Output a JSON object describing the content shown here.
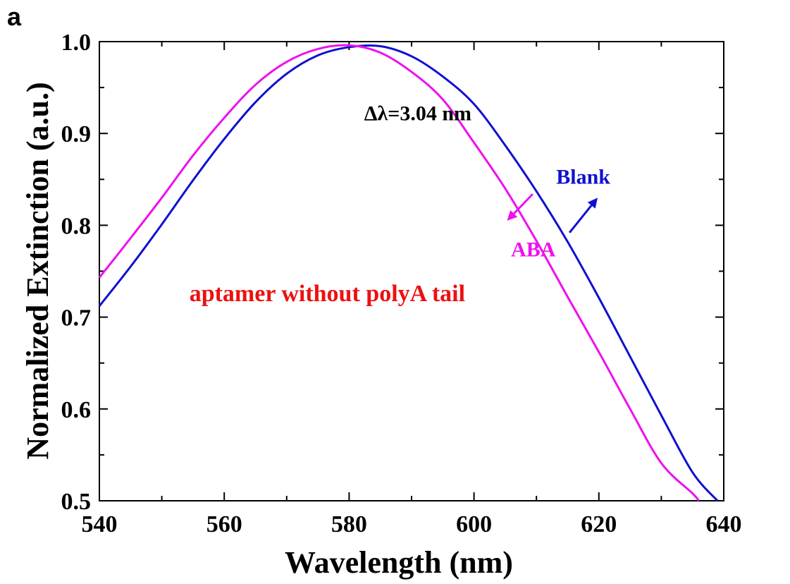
{
  "panel_label": "a",
  "chart_data": {
    "type": "line",
    "title": "",
    "xlabel": "Wavelength (nm)",
    "ylabel": "Normalized Extinction (a.u.)",
    "xlim": [
      540,
      640
    ],
    "ylim": [
      0.5,
      1.0
    ],
    "x_ticks": [
      540,
      560,
      580,
      600,
      620,
      640
    ],
    "y_ticks": [
      0.5,
      0.6,
      0.7,
      0.8,
      0.9,
      1.0
    ],
    "x_tick_labels": [
      "540",
      "560",
      "580",
      "600",
      "620",
      "640"
    ],
    "y_tick_labels": [
      "0.5",
      "0.6",
      "0.7",
      "0.8",
      "0.9",
      "1.0"
    ],
    "grid": false,
    "series": [
      {
        "name": "Blank",
        "color": "#1010d0",
        "x": [
          540,
          545,
          550,
          555,
          560,
          565,
          570,
          575,
          580,
          585,
          590,
          595,
          600,
          605,
          610,
          615,
          620,
          625,
          630,
          635,
          639
        ],
        "y": [
          0.712,
          0.755,
          0.801,
          0.849,
          0.894,
          0.934,
          0.965,
          0.985,
          0.994,
          0.995,
          0.984,
          0.962,
          0.932,
          0.887,
          0.837,
          0.782,
          0.721,
          0.657,
          0.593,
          0.531,
          0.5
        ]
      },
      {
        "name": "ABA",
        "color": "#ee10ee",
        "x": [
          540,
          545,
          550,
          555,
          560,
          565,
          570,
          575,
          580,
          585,
          590,
          595,
          600,
          605,
          610,
          615,
          620,
          625,
          630,
          635,
          636
        ],
        "y": [
          0.743,
          0.786,
          0.83,
          0.876,
          0.917,
          0.953,
          0.978,
          0.992,
          0.996,
          0.988,
          0.967,
          0.937,
          0.89,
          0.84,
          0.783,
          0.722,
          0.662,
          0.6,
          0.541,
          0.508,
          0.5
        ]
      }
    ],
    "annotations": [
      {
        "text": "Δλ=3.04 nm",
        "color": "#000000",
        "x": 591,
        "y": 0.922
      },
      {
        "text": "Blank",
        "color": "#1010d0",
        "x": 617.5,
        "y": 0.853
      },
      {
        "text": "ABA",
        "color": "#ee10ee",
        "x": 609.5,
        "y": 0.774
      },
      {
        "text": "aptamer without polyA tail",
        "color": "#ee1010",
        "x": 576.5,
        "y": 0.725
      }
    ],
    "arrows": [
      {
        "series": "Blank",
        "color": "#1010d0",
        "from": [
          615.3,
          0.792
        ],
        "to": [
          619.8,
          0.83
        ]
      },
      {
        "series": "ABA",
        "color": "#ee10ee",
        "from": [
          609.4,
          0.834
        ],
        "to": [
          605.3,
          0.805
        ]
      }
    ]
  }
}
